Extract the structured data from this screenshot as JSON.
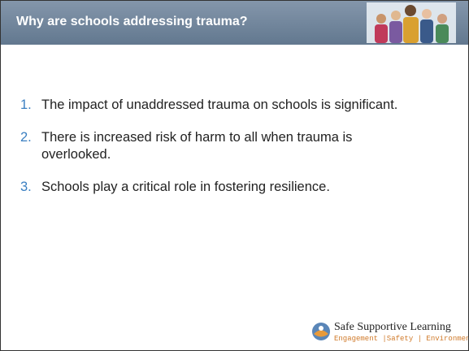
{
  "header": {
    "title": "Why are schools addressing trauma?"
  },
  "list": {
    "items": [
      {
        "number": "1.",
        "text": "The impact of unaddressed trauma on schools is significant."
      },
      {
        "number": "2.",
        "text": "There is increased risk of harm to all when trauma is overlooked."
      },
      {
        "number": "3.",
        "text": "Schools play a critical role in fostering resilience."
      }
    ]
  },
  "footer": {
    "logo_title": "Safe Supportive Learning",
    "logo_tagline": "Engagement |Safety | Environment"
  }
}
